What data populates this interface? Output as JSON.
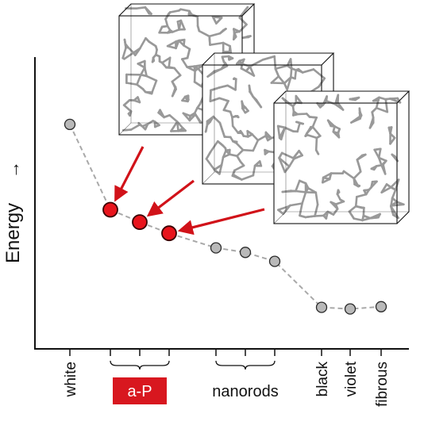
{
  "chart_data": {
    "type": "line",
    "ylabel": "Energy",
    "ylabel_arrow": "→",
    "categories": [
      "white",
      "",
      "",
      "",
      "",
      "",
      "",
      "black",
      "violet",
      "fibrous"
    ],
    "groups": [
      {
        "label": "a-P",
        "start": 1,
        "end": 3,
        "highlight": true
      },
      {
        "label": "nanorods",
        "start": 4,
        "end": 6,
        "highlight": false
      }
    ],
    "series": [
      {
        "values": [
          10.0,
          6.2,
          5.65,
          5.15,
          4.5,
          4.3,
          3.9,
          1.85,
          1.78,
          1.88
        ],
        "highlighted_indices": [
          1,
          2,
          3
        ]
      }
    ],
    "ylim": [
      0,
      13
    ],
    "grid": false,
    "colors": {
      "point": "#b9b9b9",
      "point_stroke": "#2a2a2a",
      "highlight": "#e8141c",
      "highlight_stroke": "#3a0000",
      "line": "#a9a9a9",
      "arrow": "#d11219",
      "badge_bg": "#d8171f",
      "badge_text": "#ffffff",
      "axis": "#111111",
      "box_edge": "#111111",
      "rod": "#8e8e8e"
    },
    "insets": {
      "count": 3,
      "description_icon": "network-structure-box"
    }
  }
}
